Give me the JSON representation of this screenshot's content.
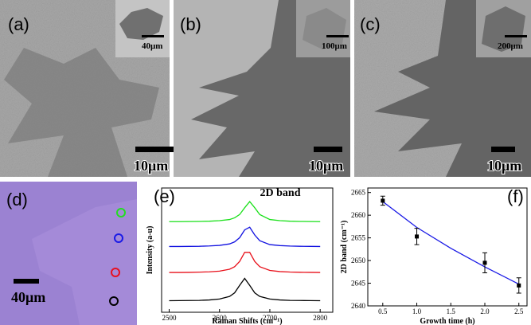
{
  "panels": [
    {
      "label": "(a)",
      "scale_bar": "10μm",
      "inset_scale_bar": "40μm"
    },
    {
      "label": "(b)",
      "scale_bar": "10μm",
      "inset_scale_bar": "100μm"
    },
    {
      "label": "(c)",
      "scale_bar": "10μm",
      "inset_scale_bar": "200μm"
    },
    {
      "label": "(d)",
      "scale_bar": "40μm"
    }
  ],
  "chart_data": [
    {
      "type": "line",
      "label": "(e)",
      "title": "2D band",
      "x_label": "Raman Shifts (cm⁻¹)",
      "y_label": "Intensity (a-u)",
      "x": [
        2500,
        2520,
        2540,
        2560,
        2580,
        2600,
        2620,
        2630,
        2640,
        2650,
        2660,
        2670,
        2680,
        2700,
        2720,
        2740,
        2760,
        2780,
        2800
      ],
      "series": [
        {
          "color": "#000000",
          "values": [
            10.2,
            10.3,
            10.4,
            10.5,
            10.9,
            11.7,
            14,
            17.2,
            23.8,
            30,
            23.8,
            17.2,
            14,
            11.7,
            10.9,
            10.5,
            10.4,
            10.3,
            10.2
          ]
        },
        {
          "color": "#e8101a",
          "values": [
            35.2,
            35.2,
            35.3,
            35.5,
            35.8,
            36.4,
            38.1,
            40.3,
            45,
            53,
            53,
            45,
            40.3,
            37,
            36,
            35.6,
            35.4,
            35.3,
            35.2
          ]
        },
        {
          "color": "#1010e0",
          "values": [
            58.2,
            58.2,
            58.3,
            58.4,
            58.7,
            59.2,
            60.5,
            62.3,
            66,
            72.9,
            75.3,
            68.4,
            63.3,
            59.9,
            59,
            58.6,
            58.4,
            58.3,
            58.2
          ]
        },
        {
          "color": "#19e019",
          "values": [
            80.2,
            80.2,
            80.3,
            80.4,
            80.6,
            81.1,
            82.1,
            83.6,
            86.5,
            92.5,
            98,
            92.5,
            86.5,
            82.1,
            81.1,
            80.6,
            80.4,
            80.3,
            80.2
          ]
        }
      ],
      "xlim": [
        2485,
        2825
      ],
      "xticks": [
        2500,
        2600,
        2700,
        2800
      ],
      "ylim": [
        0,
        110
      ]
    },
    {
      "type": "scatter",
      "label": "(f)",
      "x_label": "Growth time (h)",
      "y_label": "2D band (cm⁻¹)",
      "x": [
        0.5,
        1,
        2,
        2.5
      ],
      "values": [
        2663.2,
        2655.3,
        2649.5,
        2644.5
      ],
      "errors": [
        1,
        1.8,
        2.2,
        1.7
      ],
      "color": "#000000",
      "fit": {
        "x": [
          0.5,
          1,
          1.5,
          2,
          2.5
        ],
        "values": [
          2663,
          2657.3,
          2652.7,
          2648.6,
          2644.8
        ],
        "color": "#1a1ae6"
      },
      "xlim": [
        0.28,
        2.62
      ],
      "xticks": [
        0.5,
        {
          "value": 1,
          "label": "1.0"
        },
        1.5,
        {
          "value": 2,
          "label": "2.0"
        },
        2.5
      ],
      "ylim": [
        2640,
        2666
      ],
      "yticks": [
        2640,
        2645,
        2650,
        2655,
        2660,
        2665
      ]
    }
  ]
}
